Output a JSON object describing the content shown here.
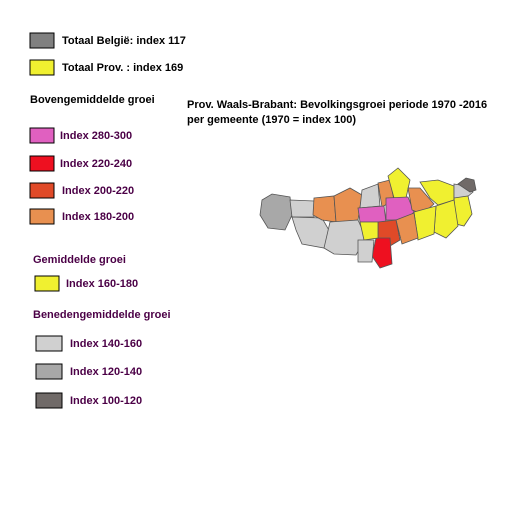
{
  "totals": [
    {
      "label": "Totaal België: index 117",
      "color": "#808080"
    },
    {
      "label": "Totaal Prov. : index 169",
      "color": "#f0f030"
    }
  ],
  "groups": [
    {
      "heading": "Bovengemiddelde groei",
      "items": [
        {
          "label": "Index 280-300",
          "color": "#e060c0"
        },
        {
          "label": "Index 220-240",
          "color": "#ee1020"
        },
        {
          "label": "Index 200-220",
          "color": "#e04a28"
        },
        {
          "label": "Index 180-200",
          "color": "#e89050"
        }
      ]
    },
    {
      "heading": "Gemiddelde groei",
      "items": [
        {
          "label": "Index 160-180",
          "color": "#f0f030"
        }
      ]
    },
    {
      "heading": "Benedengemiddelde groei",
      "items": [
        {
          "label": "Index 140-160",
          "color": "#d0d0d0"
        },
        {
          "label": "Index 120-140",
          "color": "#a8a8a8"
        },
        {
          "label": "Index 100-120",
          "color": "#706a68"
        }
      ]
    }
  ],
  "title": [
    "Prov. Waals-Brabant: Bevolkingsgroei periode 1970 -2016",
    "per  gemeente (1970 = index 100)"
  ]
}
